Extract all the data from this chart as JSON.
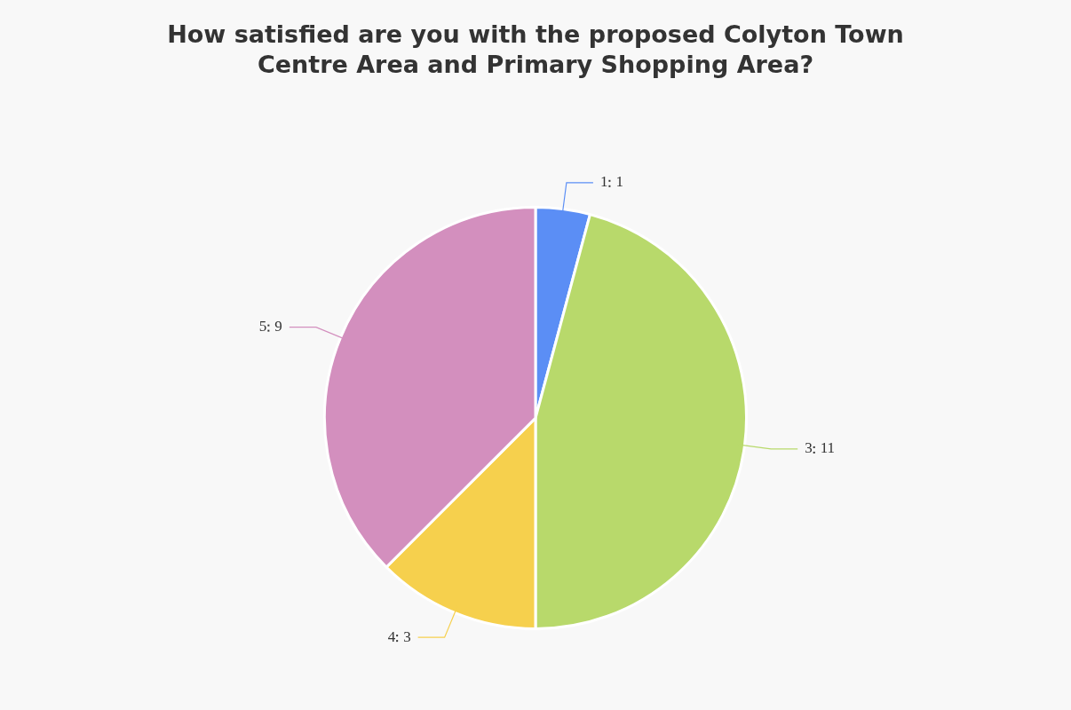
{
  "chart_data": {
    "type": "pie",
    "title": "How satisfied are you with the proposed Colyton Town Centre Area and Primary Shopping Area?",
    "categories": [
      "1",
      "3",
      "4",
      "5"
    ],
    "values": [
      1,
      11,
      3,
      9
    ],
    "colors": [
      "#5b8ef5",
      "#b8d96b",
      "#f6d04d",
      "#d38fbe"
    ],
    "data_labels": true,
    "legend": false
  }
}
